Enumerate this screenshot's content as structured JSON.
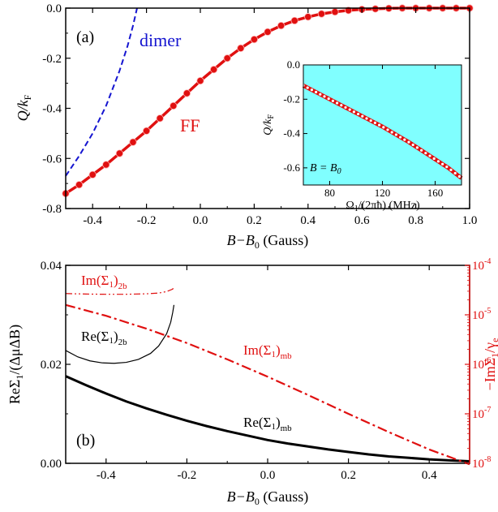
{
  "chart_data": [
    {
      "panel": "(a)",
      "type": "line",
      "xlabel": "B−B",
      "xlabel_sub": "0",
      "xlabel_unit": " (Gauss)",
      "ylabel": "Q/k",
      "ylabel_sub": "F",
      "xlim": [
        -0.5,
        1.0
      ],
      "ylim": [
        -0.8,
        0.0
      ],
      "xticks": [
        -0.4,
        -0.2,
        0.0,
        0.2,
        0.4,
        0.6,
        0.8,
        1.0
      ],
      "xtick_labels": [
        "-0.4",
        "-0.2",
        "0.0",
        "0.2",
        "0.4",
        "0.6",
        "0.8",
        "1.0"
      ],
      "yticks": [
        0.0,
        -0.2,
        -0.4,
        -0.6,
        -0.8
      ],
      "ytick_labels": [
        "0.0",
        "-0.2",
        "-0.4",
        "-0.6",
        "-0.8"
      ],
      "grid": false,
      "series": [
        {
          "name": "FF",
          "style": "solid-with-markers",
          "color": "#e01010",
          "x": [
            -0.5,
            -0.45,
            -0.4,
            -0.35,
            -0.3,
            -0.25,
            -0.2,
            -0.15,
            -0.1,
            -0.05,
            0.0,
            0.05,
            0.1,
            0.15,
            0.2,
            0.25,
            0.3,
            0.35,
            0.4,
            0.45,
            0.5,
            0.55,
            0.6,
            0.65,
            0.7,
            0.75,
            0.8,
            0.85,
            0.9,
            0.95,
            1.0
          ],
          "y": [
            -0.74,
            -0.705,
            -0.665,
            -0.625,
            -0.58,
            -0.535,
            -0.49,
            -0.44,
            -0.39,
            -0.34,
            -0.29,
            -0.245,
            -0.2,
            -0.16,
            -0.125,
            -0.095,
            -0.07,
            -0.05,
            -0.035,
            -0.023,
            -0.015,
            -0.009,
            -0.005,
            -0.003,
            -0.001,
            0.0,
            0.0,
            0.0,
            0.0,
            0.0,
            0.0
          ]
        },
        {
          "name": "dimer",
          "style": "dashed",
          "color": "#1515d0",
          "x": [
            -0.5,
            -0.45,
            -0.4,
            -0.35,
            -0.3,
            -0.27,
            -0.25,
            -0.235
          ],
          "y": [
            -0.67,
            -0.59,
            -0.5,
            -0.39,
            -0.25,
            -0.15,
            -0.07,
            0.0
          ]
        }
      ],
      "annotations": [
        "(a)",
        "dimer",
        "FF"
      ],
      "inset": {
        "type": "line",
        "background": "#80ffff",
        "xlabel": "Ω",
        "xlabel_sub": "1",
        "xlabel_rest": "/(2πħ) (MHz)",
        "ylabel": "Q/k",
        "ylabel_sub": "F",
        "xlim": [
          60,
          180
        ],
        "ylim": [
          -0.7,
          0.0
        ],
        "xticks": [
          80,
          120,
          160
        ],
        "xtick_labels": [
          "80",
          "120",
          "160"
        ],
        "yticks": [
          0.0,
          -0.2,
          -0.4,
          -0.6
        ],
        "ytick_labels": [
          "0.0",
          "-0.2",
          "-0.4",
          "-0.6"
        ],
        "annotation": "B = B",
        "annotation_sub": "0",
        "series": [
          {
            "x": [
              60,
              70,
              80,
              90,
              100,
              110,
              120,
              130,
              140,
              150,
              160,
              170,
              180
            ],
            "y": [
              -0.12,
              -0.16,
              -0.2,
              -0.24,
              -0.28,
              -0.32,
              -0.36,
              -0.405,
              -0.45,
              -0.5,
              -0.55,
              -0.6,
              -0.66
            ]
          }
        ]
      }
    },
    {
      "panel": "(b)",
      "type": "line",
      "xlabel": "B−B",
      "xlabel_sub": "0",
      "xlabel_unit": " (Gauss)",
      "ylabel": "ReΣ",
      "ylabel_sub": "1",
      "ylabel_rest": "/(ΔμΔB)",
      "y2label": "−ImΣ",
      "y2label_sub": "1",
      "y2label_rest": "/γ",
      "y2label_sub2": "e",
      "xlim": [
        -0.5,
        0.5
      ],
      "ylim": [
        0.0,
        0.04
      ],
      "y2lim_log10": [
        -8,
        -4
      ],
      "xticks": [
        -0.4,
        -0.2,
        0.0,
        0.2,
        0.4
      ],
      "xtick_labels": [
        "-0.4",
        "-0.2",
        "0.0",
        "0.2",
        "0.4"
      ],
      "yticks": [
        0.0,
        0.02,
        0.04
      ],
      "ytick_labels": [
        "0.00",
        "0.02",
        "0.04"
      ],
      "y2ticks_exp": [
        -4,
        -5,
        -6,
        -7,
        -8
      ],
      "y2tick_base": "10",
      "y2tick_exp_labels": [
        "-4",
        "-5",
        "-6",
        "-7",
        "-8"
      ],
      "grid": false,
      "series": [
        {
          "name": "Re(Σ",
          "name_sub": "1",
          "name_end": ")",
          "name_sub2": "mb",
          "axis": "left",
          "color": "#000000",
          "style": "thick-solid",
          "x": [
            -0.5,
            -0.45,
            -0.4,
            -0.35,
            -0.3,
            -0.25,
            -0.2,
            -0.15,
            -0.1,
            -0.05,
            0.0,
            0.05,
            0.1,
            0.15,
            0.2,
            0.25,
            0.3,
            0.35,
            0.4,
            0.45,
            0.5
          ],
          "y": [
            0.0176,
            0.0158,
            0.0141,
            0.0125,
            0.0111,
            0.0098,
            0.0086,
            0.0075,
            0.0065,
            0.0056,
            0.0047,
            0.004,
            0.0034,
            0.0028,
            0.0023,
            0.0018,
            0.0014,
            0.0011,
            0.0008,
            0.0006,
            0.0004
          ]
        },
        {
          "name": "Re(Σ",
          "name_sub": "1",
          "name_end": ")",
          "name_sub2": "2b",
          "axis": "left",
          "color": "#000000",
          "style": "thin-solid",
          "x": [
            -0.5,
            -0.47,
            -0.44,
            -0.41,
            -0.38,
            -0.35,
            -0.32,
            -0.29,
            -0.27,
            -0.25,
            -0.24,
            -0.235,
            -0.232
          ],
          "y": [
            0.0228,
            0.0215,
            0.0207,
            0.0203,
            0.0202,
            0.0204,
            0.021,
            0.0222,
            0.0237,
            0.0262,
            0.0285,
            0.0305,
            0.032
          ]
        },
        {
          "name": "Im(Σ",
          "name_sub": "1",
          "name_end": ")",
          "name_sub2": "mb",
          "axis": "right",
          "color": "#e01010",
          "style": "dashdot",
          "x": [
            -0.5,
            -0.4,
            -0.3,
            -0.2,
            -0.1,
            0.0,
            0.1,
            0.2,
            0.3,
            0.4,
            0.5
          ],
          "log10_y": [
            -4.8,
            -5.02,
            -5.28,
            -5.57,
            -5.9,
            -6.25,
            -6.62,
            -7.0,
            -7.37,
            -7.72,
            -8.02
          ]
        },
        {
          "name": "Im(Σ",
          "name_sub": "1",
          "name_end": ")",
          "name_sub2": "2b",
          "axis": "right",
          "color": "#e01010",
          "style": "thin-dashdotdot",
          "x": [
            -0.5,
            -0.45,
            -0.4,
            -0.35,
            -0.3,
            -0.27,
            -0.25,
            -0.235,
            -0.232
          ],
          "log10_y": [
            -4.57,
            -4.58,
            -4.585,
            -4.585,
            -4.575,
            -4.56,
            -4.53,
            -4.48,
            -4.42
          ]
        }
      ],
      "annotations": [
        "(b)"
      ]
    }
  ]
}
